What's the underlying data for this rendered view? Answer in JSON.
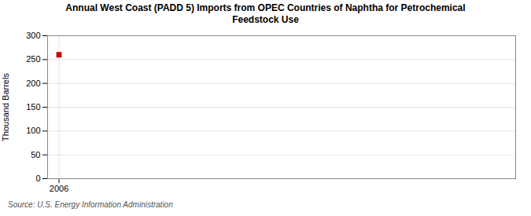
{
  "chart_data": {
    "type": "scatter",
    "title": "Annual West Coast (PADD 5) Imports from OPEC Countries of Naphtha for Petrochemical\nFeedstock Use",
    "ylabel": "Thousand Barrels",
    "source": "Source: U.S. Energy Information Administration",
    "x": [
      2006
    ],
    "values": [
      260
    ],
    "color": "#cc0000",
    "marker": "square",
    "xlim": [
      2005.4,
      2030
    ],
    "xticks": [
      2006
    ],
    "ylim": [
      0,
      300
    ],
    "yticks": [
      0,
      50,
      100,
      150,
      200,
      250,
      300
    ],
    "grid": true
  }
}
